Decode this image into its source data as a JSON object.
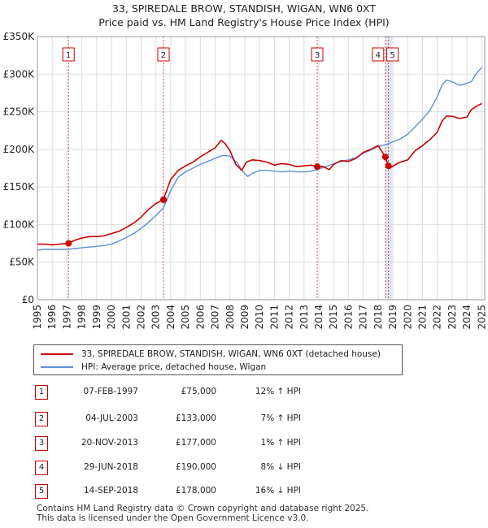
{
  "title_line1": "33, SPIREDALE BROW, STANDISH, WIGAN, WN6 0XT",
  "title_line2": "Price paid vs. HM Land Registry's House Price Index (HPI)",
  "colors": {
    "property": "#cc0000",
    "hpi": "#5b8fd6",
    "grid": "#dddddd",
    "band": "#dce8f7",
    "marker_box": "#cc0000"
  },
  "legend": {
    "property_label": "33, SPIREDALE BROW, STANDISH, WIGAN, WN6 0XT (detached house)",
    "hpi_label": "HPI: Average price, detached house, Wigan"
  },
  "transactions": [
    {
      "num": "1",
      "date": "07-FEB-1997",
      "price": "£75,000",
      "hpi": "12% ↑ HPI"
    },
    {
      "num": "2",
      "date": "04-JUL-2003",
      "price": "£133,000",
      "hpi": "7% ↑ HPI"
    },
    {
      "num": "3",
      "date": "20-NOV-2013",
      "price": "£177,000",
      "hpi": "1% ↑ HPI"
    },
    {
      "num": "4",
      "date": "29-JUN-2018",
      "price": "£190,000",
      "hpi": "8% ↓ HPI"
    },
    {
      "num": "5",
      "date": "14-SEP-2018",
      "price": "£178,000",
      "hpi": "16% ↓ HPI"
    }
  ],
  "footer_line1": "Contains HM Land Registry data © Crown copyright and database right 2025.",
  "footer_line2": "This data is licensed under the Open Government Licence v3.0.",
  "chart_data": {
    "type": "line",
    "title": "33, SPIREDALE BROW, STANDISH, WIGAN, WN6 0XT",
    "subtitle": "Price paid vs. HM Land Registry's House Price Index (HPI)",
    "xlim": [
      1995,
      2025.2
    ],
    "ylim": [
      0,
      350000
    ],
    "x_ticks": [
      1995,
      1996,
      1997,
      1998,
      1999,
      2000,
      2001,
      2002,
      2003,
      2004,
      2005,
      2006,
      2007,
      2008,
      2009,
      2010,
      2011,
      2012,
      2013,
      2014,
      2015,
      2016,
      2017,
      2018,
      2019,
      2020,
      2021,
      2022,
      2023,
      2024,
      2025
    ],
    "x_tick_labels": [
      "1995",
      "1996",
      "1997",
      "1998",
      "1999",
      "2000",
      "2001",
      "2002",
      "2003",
      "2004",
      "2005",
      "2006",
      "2007",
      "2008",
      "2009",
      "2010",
      "2011",
      "2012",
      "2013",
      "2014",
      "2015",
      "2016",
      "2017",
      "2018",
      "2019",
      "2020",
      "2021",
      "2022",
      "2023",
      "2024",
      "2025"
    ],
    "y_ticks": [
      0,
      50000,
      100000,
      150000,
      200000,
      250000,
      300000,
      350000
    ],
    "y_tick_labels": [
      "£0",
      "£50K",
      "£100K",
      "£150K",
      "£200K",
      "£250K",
      "£300K",
      "£350K"
    ],
    "grid": true,
    "series": [
      {
        "name": "33, SPIREDALE BROW, STANDISH, WIGAN, WN6 0XT (detached house)",
        "x": [
          1995,
          1995.5,
          1996,
          1996.5,
          1997.1,
          1997.5,
          1998,
          1998.5,
          1999,
          1999.5,
          2000,
          2000.5,
          2001,
          2001.5,
          2002,
          2002.5,
          2003,
          2003.5,
          2004,
          2004.5,
          2005,
          2005.5,
          2006,
          2006.5,
          2007,
          2007.4,
          2007.7,
          2008,
          2008.4,
          2008.8,
          2009.1,
          2009.5,
          2010,
          2010.5,
          2011,
          2011.5,
          2012,
          2012.5,
          2013,
          2013.5,
          2013.9,
          2014.3,
          2014.7,
          2015,
          2015.5,
          2016,
          2016.5,
          2017,
          2017.5,
          2018,
          2018.49,
          2018.7,
          2018.8,
          2019.2,
          2019.5,
          2020,
          2020.5,
          2021,
          2021.5,
          2022,
          2022.3,
          2022.6,
          2023,
          2023.5,
          2024,
          2024.3,
          2024.7,
          2025
        ],
        "values": [
          74000,
          74000,
          73000,
          74000,
          75000,
          79000,
          82000,
          84000,
          84000,
          85000,
          88000,
          91000,
          96000,
          102000,
          110000,
          120000,
          128000,
          133000,
          160000,
          172000,
          178000,
          183000,
          190000,
          196000,
          202000,
          212000,
          207000,
          198000,
          180000,
          172000,
          183000,
          186000,
          185000,
          183000,
          179000,
          181000,
          180000,
          177000,
          178000,
          179000,
          177000,
          177000,
          173000,
          180000,
          185000,
          184000,
          188000,
          196000,
          200000,
          205000,
          190000,
          178000,
          175000,
          180000,
          183000,
          186000,
          198000,
          205000,
          213000,
          223000,
          237000,
          244000,
          244000,
          241000,
          243000,
          253000,
          258000,
          261000
        ]
      },
      {
        "name": "HPI: Average price, detached house, Wigan",
        "x": [
          1995,
          1995.5,
          1996,
          1996.5,
          1997,
          1997.5,
          1998,
          1998.5,
          1999,
          1999.5,
          2000,
          2000.5,
          2001,
          2001.5,
          2002,
          2002.5,
          2003,
          2003.5,
          2004,
          2004.5,
          2005,
          2005.5,
          2006,
          2006.5,
          2007,
          2007.5,
          2008,
          2008.5,
          2008.8,
          2009.2,
          2009.5,
          2010,
          2010.5,
          2011,
          2011.5,
          2012,
          2012.5,
          2013,
          2013.5,
          2014,
          2014.5,
          2015,
          2015.5,
          2016,
          2016.5,
          2017,
          2017.5,
          2018,
          2018.5,
          2019,
          2019.5,
          2020,
          2020.5,
          2021,
          2021.5,
          2022,
          2022.3,
          2022.6,
          2023,
          2023.5,
          2024,
          2024.3,
          2024.6,
          2025
        ],
        "values": [
          66000,
          67000,
          67000,
          67000,
          67000,
          68000,
          69000,
          70000,
          71000,
          72000,
          74000,
          78000,
          83000,
          88000,
          95000,
          103000,
          112000,
          122000,
          145000,
          163000,
          170000,
          175000,
          180000,
          184000,
          188000,
          192000,
          191000,
          182000,
          172000,
          164000,
          168000,
          172000,
          172000,
          171000,
          170000,
          171000,
          170000,
          170000,
          171000,
          174000,
          177000,
          181000,
          184000,
          186000,
          189000,
          195000,
          199000,
          204000,
          206000,
          210000,
          214000,
          220000,
          230000,
          240000,
          252000,
          270000,
          285000,
          292000,
          290000,
          285000,
          288000,
          290000,
          300000,
          309000
        ]
      }
    ],
    "sales": [
      {
        "label": "1",
        "x": 1997.1,
        "value": 75000
      },
      {
        "label": "2",
        "x": 2003.51,
        "value": 133000
      },
      {
        "label": "3",
        "x": 2013.89,
        "value": 177000
      },
      {
        "label": "4",
        "x": 2018.49,
        "value": 190000
      },
      {
        "label": "5",
        "x": 2018.7,
        "value": 178000
      }
    ],
    "legend_position": "below"
  }
}
